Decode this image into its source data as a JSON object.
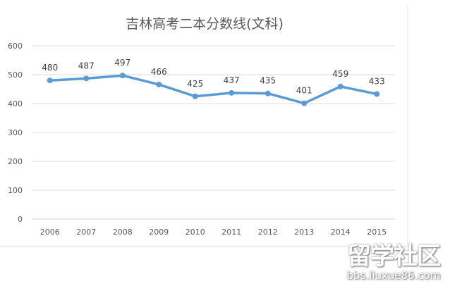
{
  "chart_data": {
    "type": "line",
    "title": "吉林高考二本分数线(文科)",
    "categories": [
      "2006",
      "2007",
      "2008",
      "2009",
      "2010",
      "2011",
      "2012",
      "2013",
      "2014",
      "2015"
    ],
    "series": [
      {
        "values": [
          480,
          487,
          497,
          466,
          425,
          437,
          435,
          401,
          459,
          433
        ]
      }
    ],
    "ylim": [
      0,
      600
    ],
    "yticks": [
      0,
      100,
      200,
      300,
      400,
      500,
      600
    ],
    "grid": true,
    "data_labels": true,
    "color": "#5b9bd5"
  },
  "watermark": {
    "line1": "留学社区",
    "line2": "bbs.liuxue86.com"
  }
}
